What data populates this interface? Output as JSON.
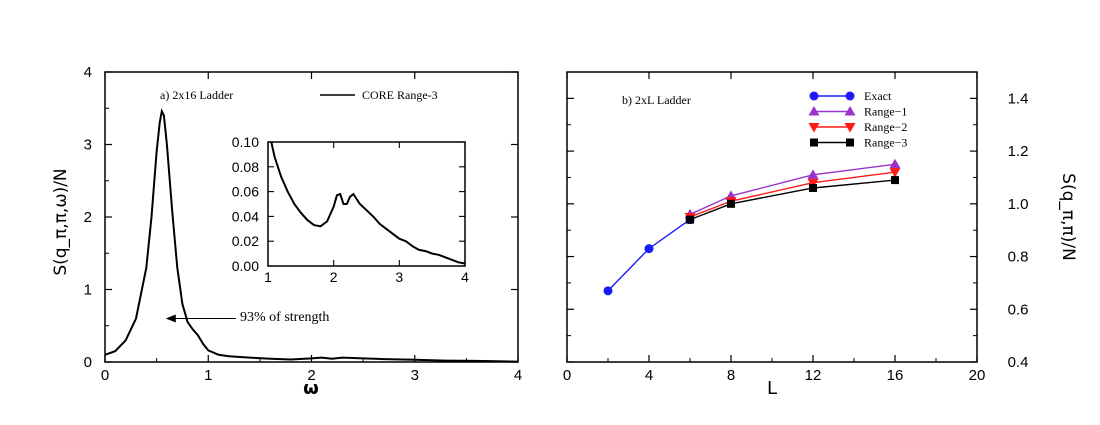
{
  "colors": {
    "exact": "#1a1aff",
    "range1": "#9933cc",
    "range2": "#ff1a1a",
    "range3": "#000000"
  },
  "chart_data": [
    {
      "type": "line",
      "panel_label": "a) 2x16 Ladder",
      "xlabel": "ω",
      "ylabel": "S(q_π,π,ω)/N",
      "xlim": [
        0,
        4
      ],
      "ylim": [
        0,
        4
      ],
      "xticks": [
        "0",
        "1",
        "2",
        "3",
        "4"
      ],
      "yticks": [
        "0",
        "1",
        "2",
        "3",
        "4"
      ],
      "series": [
        {
          "name": "CORE Range-3",
          "x": [
            0,
            0.1,
            0.2,
            0.3,
            0.4,
            0.45,
            0.5,
            0.53,
            0.55,
            0.57,
            0.6,
            0.65,
            0.7,
            0.75,
            0.8,
            0.85,
            0.9,
            0.95,
            1.0,
            1.1,
            1.2,
            1.4,
            1.6,
            1.8,
            2.0,
            2.1,
            2.2,
            2.3,
            2.5,
            2.7,
            3.0,
            3.3,
            3.6,
            3.8,
            4.0
          ],
          "y": [
            0.1,
            0.15,
            0.3,
            0.6,
            1.3,
            2.0,
            2.9,
            3.3,
            3.46,
            3.4,
            3.0,
            2.1,
            1.3,
            0.8,
            0.55,
            0.45,
            0.37,
            0.25,
            0.16,
            0.1,
            0.08,
            0.06,
            0.045,
            0.035,
            0.05,
            0.06,
            0.045,
            0.06,
            0.05,
            0.04,
            0.03,
            0.02,
            0.015,
            0.01,
            0.005
          ]
        }
      ],
      "annotation": "93% of strength",
      "annotation_arrow_to": {
        "x": 0.55,
        "y": 0.6
      }
    },
    {
      "type": "line",
      "inset_of": "a) 2x16 Ladder",
      "xlim": [
        1,
        4
      ],
      "ylim": [
        0,
        0.1
      ],
      "xticks": [
        "1",
        "2",
        "3",
        "4"
      ],
      "yticks": [
        "0.00",
        "0.02",
        "0.04",
        "0.06",
        "0.08",
        "0.10"
      ],
      "series": [
        {
          "x": [
            1.05,
            1.1,
            1.2,
            1.3,
            1.4,
            1.5,
            1.6,
            1.7,
            1.8,
            1.9,
            2.0,
            2.05,
            2.1,
            2.15,
            2.2,
            2.25,
            2.3,
            2.35,
            2.4,
            2.5,
            2.6,
            2.7,
            2.8,
            2.9,
            3.0,
            3.1,
            3.2,
            3.3,
            3.4,
            3.5,
            3.6,
            3.7,
            3.8,
            3.9,
            4.0
          ],
          "y": [
            0.1,
            0.088,
            0.072,
            0.06,
            0.05,
            0.043,
            0.037,
            0.033,
            0.032,
            0.036,
            0.048,
            0.057,
            0.058,
            0.05,
            0.05,
            0.056,
            0.058,
            0.054,
            0.05,
            0.045,
            0.04,
            0.034,
            0.03,
            0.026,
            0.022,
            0.02,
            0.016,
            0.013,
            0.012,
            0.01,
            0.009,
            0.007,
            0.005,
            0.003,
            0.002
          ]
        }
      ]
    },
    {
      "type": "line",
      "panel_label": "b) 2xL Ladder",
      "xlabel": "L",
      "ylabel": "S(q_π,π)/N",
      "xlim": [
        0,
        20
      ],
      "ylim": [
        0.4,
        1.5
      ],
      "xticks": [
        "0",
        "4",
        "8",
        "12",
        "16",
        "20"
      ],
      "yticks": [
        "0.4",
        "0.6",
        "0.8",
        "1.0",
        "1.2",
        "1.4"
      ],
      "legend_position": "top-right",
      "series": [
        {
          "name": "Exact",
          "marker": "circle",
          "x": [
            2,
            4,
            6
          ],
          "y": [
            0.67,
            0.83,
            0.94
          ]
        },
        {
          "name": "Range−1",
          "marker": "triangle-up",
          "x": [
            6,
            8,
            12,
            16
          ],
          "y": [
            0.96,
            1.03,
            1.11,
            1.15
          ]
        },
        {
          "name": "Range−2",
          "marker": "triangle-down",
          "x": [
            6,
            8,
            12,
            16
          ],
          "y": [
            0.95,
            1.01,
            1.08,
            1.12
          ]
        },
        {
          "name": "Range−3",
          "marker": "square",
          "x": [
            6,
            8,
            12,
            16
          ],
          "y": [
            0.94,
            1.0,
            1.06,
            1.09
          ]
        }
      ]
    }
  ]
}
